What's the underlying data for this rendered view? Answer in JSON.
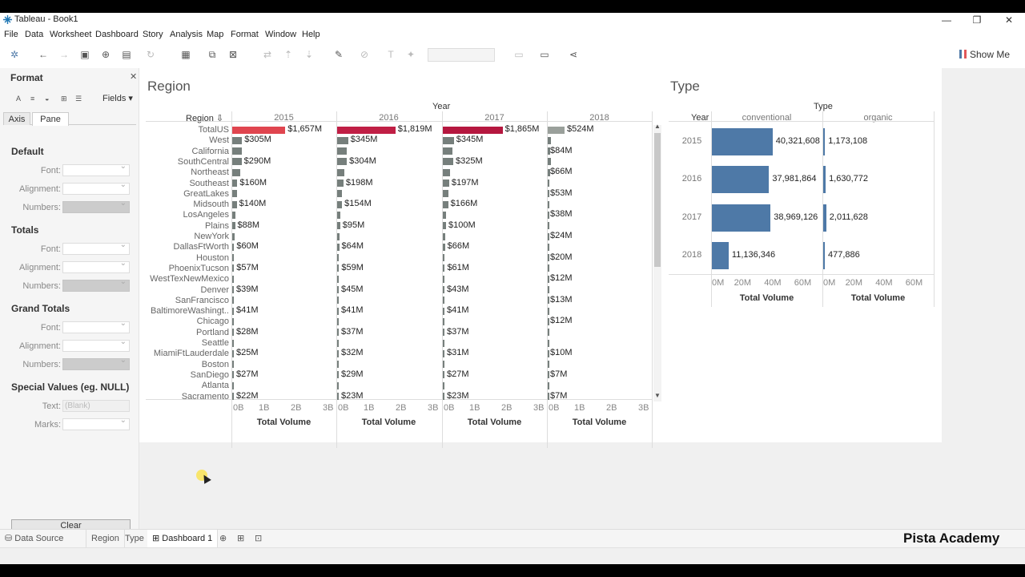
{
  "window": {
    "title": "Tableau - Book1",
    "minimize_icon": "minimize-icon",
    "restore_icon": "restore-icon",
    "close_icon": "close-icon"
  },
  "menu": [
    "File",
    "Data",
    "Worksheet",
    "Dashboard",
    "Story",
    "Analysis",
    "Map",
    "Format",
    "Window",
    "Help"
  ],
  "toolbar": {
    "show_me": "Show Me"
  },
  "format_pane": {
    "title": "Format",
    "fields_label": "Fields",
    "tabs": [
      "Axis",
      "Pane"
    ],
    "active_tab": "Pane",
    "sections": [
      {
        "title": "Default",
        "rows": [
          "Font:",
          "Alignment:",
          "Numbers:"
        ]
      },
      {
        "title": "Totals",
        "rows": [
          "Font:",
          "Alignment:",
          "Numbers:"
        ]
      },
      {
        "title": "Grand Totals",
        "rows": [
          "Font:",
          "Alignment:",
          "Numbers:"
        ]
      },
      {
        "title": "Special Values (eg. NULL)",
        "rows": [
          "Text:",
          "Marks:"
        ]
      }
    ],
    "text_value": "(Blank)",
    "clear_label": "Clear"
  },
  "region_sheet": {
    "title": "Region",
    "column_field": "Year",
    "row_field": "Region",
    "years": [
      "2015",
      "2016",
      "2017",
      "2018"
    ],
    "axis_ticks": [
      "0B",
      "1B",
      "2B",
      "3B"
    ],
    "axis_title": "Total Volume",
    "highlight_colors": {
      "2015": "#e0454f",
      "2016": "#c01f45",
      "2017": "#b5173f",
      "2018": "#9aa09b"
    },
    "bar_color": "#767f7c",
    "axis_max": 3000
  },
  "chart_data": [
    {
      "type": "bar",
      "title": "Region",
      "xlabel": "Total Volume",
      "ylabel": "Region",
      "xlim": [
        0,
        3000
      ],
      "unit": "$M",
      "categories": [
        "TotalUS",
        "West",
        "California",
        "SouthCentral",
        "Northeast",
        "Southeast",
        "GreatLakes",
        "Midsouth",
        "LosAngeles",
        "Plains",
        "NewYork",
        "DallasFtWorth",
        "Houston",
        "PhoenixTucson",
        "WestTexNewMexico",
        "Denver",
        "SanFrancisco",
        "BaltimoreWashingt..",
        "Chicago",
        "Portland",
        "Seattle",
        "MiamiFtLauderdale",
        "Boston",
        "SanDiego",
        "Atlanta",
        "Sacramento"
      ],
      "series": [
        {
          "name": "2015",
          "values": [
            1657,
            305,
            300,
            290,
            250,
            160,
            150,
            140,
            100,
            88,
            80,
            60,
            55,
            57,
            50,
            39,
            45,
            41,
            40,
            28,
            35,
            25,
            30,
            27,
            25,
            22
          ],
          "labels": [
            "$1,657M",
            "$305M",
            "",
            "$290M",
            "",
            "$160M",
            "",
            "$140M",
            "",
            "$88M",
            "",
            "$60M",
            "",
            "$57M",
            "",
            "$39M",
            "",
            "$41M",
            "",
            "$28M",
            "",
            "$25M",
            "",
            "$27M",
            "",
            "$22M"
          ]
        },
        {
          "name": "2016",
          "values": [
            1819,
            345,
            300,
            304,
            220,
            198,
            160,
            154,
            105,
            95,
            80,
            64,
            58,
            59,
            52,
            45,
            46,
            41,
            40,
            37,
            35,
            32,
            30,
            29,
            25,
            23
          ],
          "labels": [
            "$1,819M",
            "$345M",
            "",
            "$304M",
            "",
            "$198M",
            "",
            "$154M",
            "",
            "$95M",
            "",
            "$64M",
            "",
            "$59M",
            "",
            "$45M",
            "",
            "$41M",
            "",
            "$37M",
            "",
            "$32M",
            "",
            "$29M",
            "",
            "$23M"
          ]
        },
        {
          "name": "2017",
          "values": [
            1865,
            345,
            310,
            325,
            230,
            197,
            165,
            166,
            110,
            100,
            82,
            66,
            58,
            61,
            52,
            43,
            45,
            41,
            40,
            37,
            36,
            31,
            30,
            27,
            26,
            23
          ],
          "labels": [
            "$1,865M",
            "$345M",
            "",
            "$325M",
            "",
            "$197M",
            "",
            "$166M",
            "",
            "$100M",
            "",
            "$66M",
            "",
            "$61M",
            "",
            "$43M",
            "",
            "$41M",
            "",
            "$37M",
            "",
            "$31M",
            "",
            "$27M",
            "",
            "$23M"
          ]
        },
        {
          "name": "2018",
          "values": [
            524,
            95,
            84,
            90,
            66,
            55,
            53,
            50,
            38,
            30,
            24,
            20,
            20,
            20,
            12,
            12,
            13,
            12,
            12,
            10,
            10,
            10,
            8,
            7,
            7,
            7
          ],
          "labels": [
            "$524M",
            "",
            "$84M",
            "",
            "$66M",
            "",
            "$53M",
            "",
            "$38M",
            "",
            "$24M",
            "",
            "$20M",
            "",
            "$12M",
            "",
            "$13M",
            "",
            "$12M",
            "",
            "",
            "$10M",
            "",
            "$7M",
            "",
            "$7M"
          ]
        }
      ]
    },
    {
      "type": "bar",
      "title": "Type",
      "column_field": "Type",
      "row_field": "Year",
      "xlabel": "Total Volume",
      "xlim": [
        0,
        70000000
      ],
      "categories": [
        "2015",
        "2016",
        "2017",
        "2018"
      ],
      "axis_ticks": [
        "0M",
        "20M",
        "40M",
        "60M"
      ],
      "series": [
        {
          "name": "conventional",
          "values": [
            40321608,
            37981864,
            38969126,
            11136346
          ],
          "labels": [
            "40,321,608",
            "37,981,864",
            "38,969,126",
            "11,136,346"
          ]
        },
        {
          "name": "organic",
          "values": [
            1173108,
            1630772,
            2011628,
            477886
          ],
          "labels": [
            "1,173,108",
            "1,630,772",
            "2,011,628",
            "477,886"
          ]
        }
      ],
      "bar_color": "#4e79a7"
    }
  ],
  "sheet_tabs": {
    "data_source": "Data Source",
    "tabs": [
      "Region",
      "Type",
      "Dashboard 1"
    ],
    "active": "Dashboard 1"
  },
  "brand": "Pista Academy"
}
